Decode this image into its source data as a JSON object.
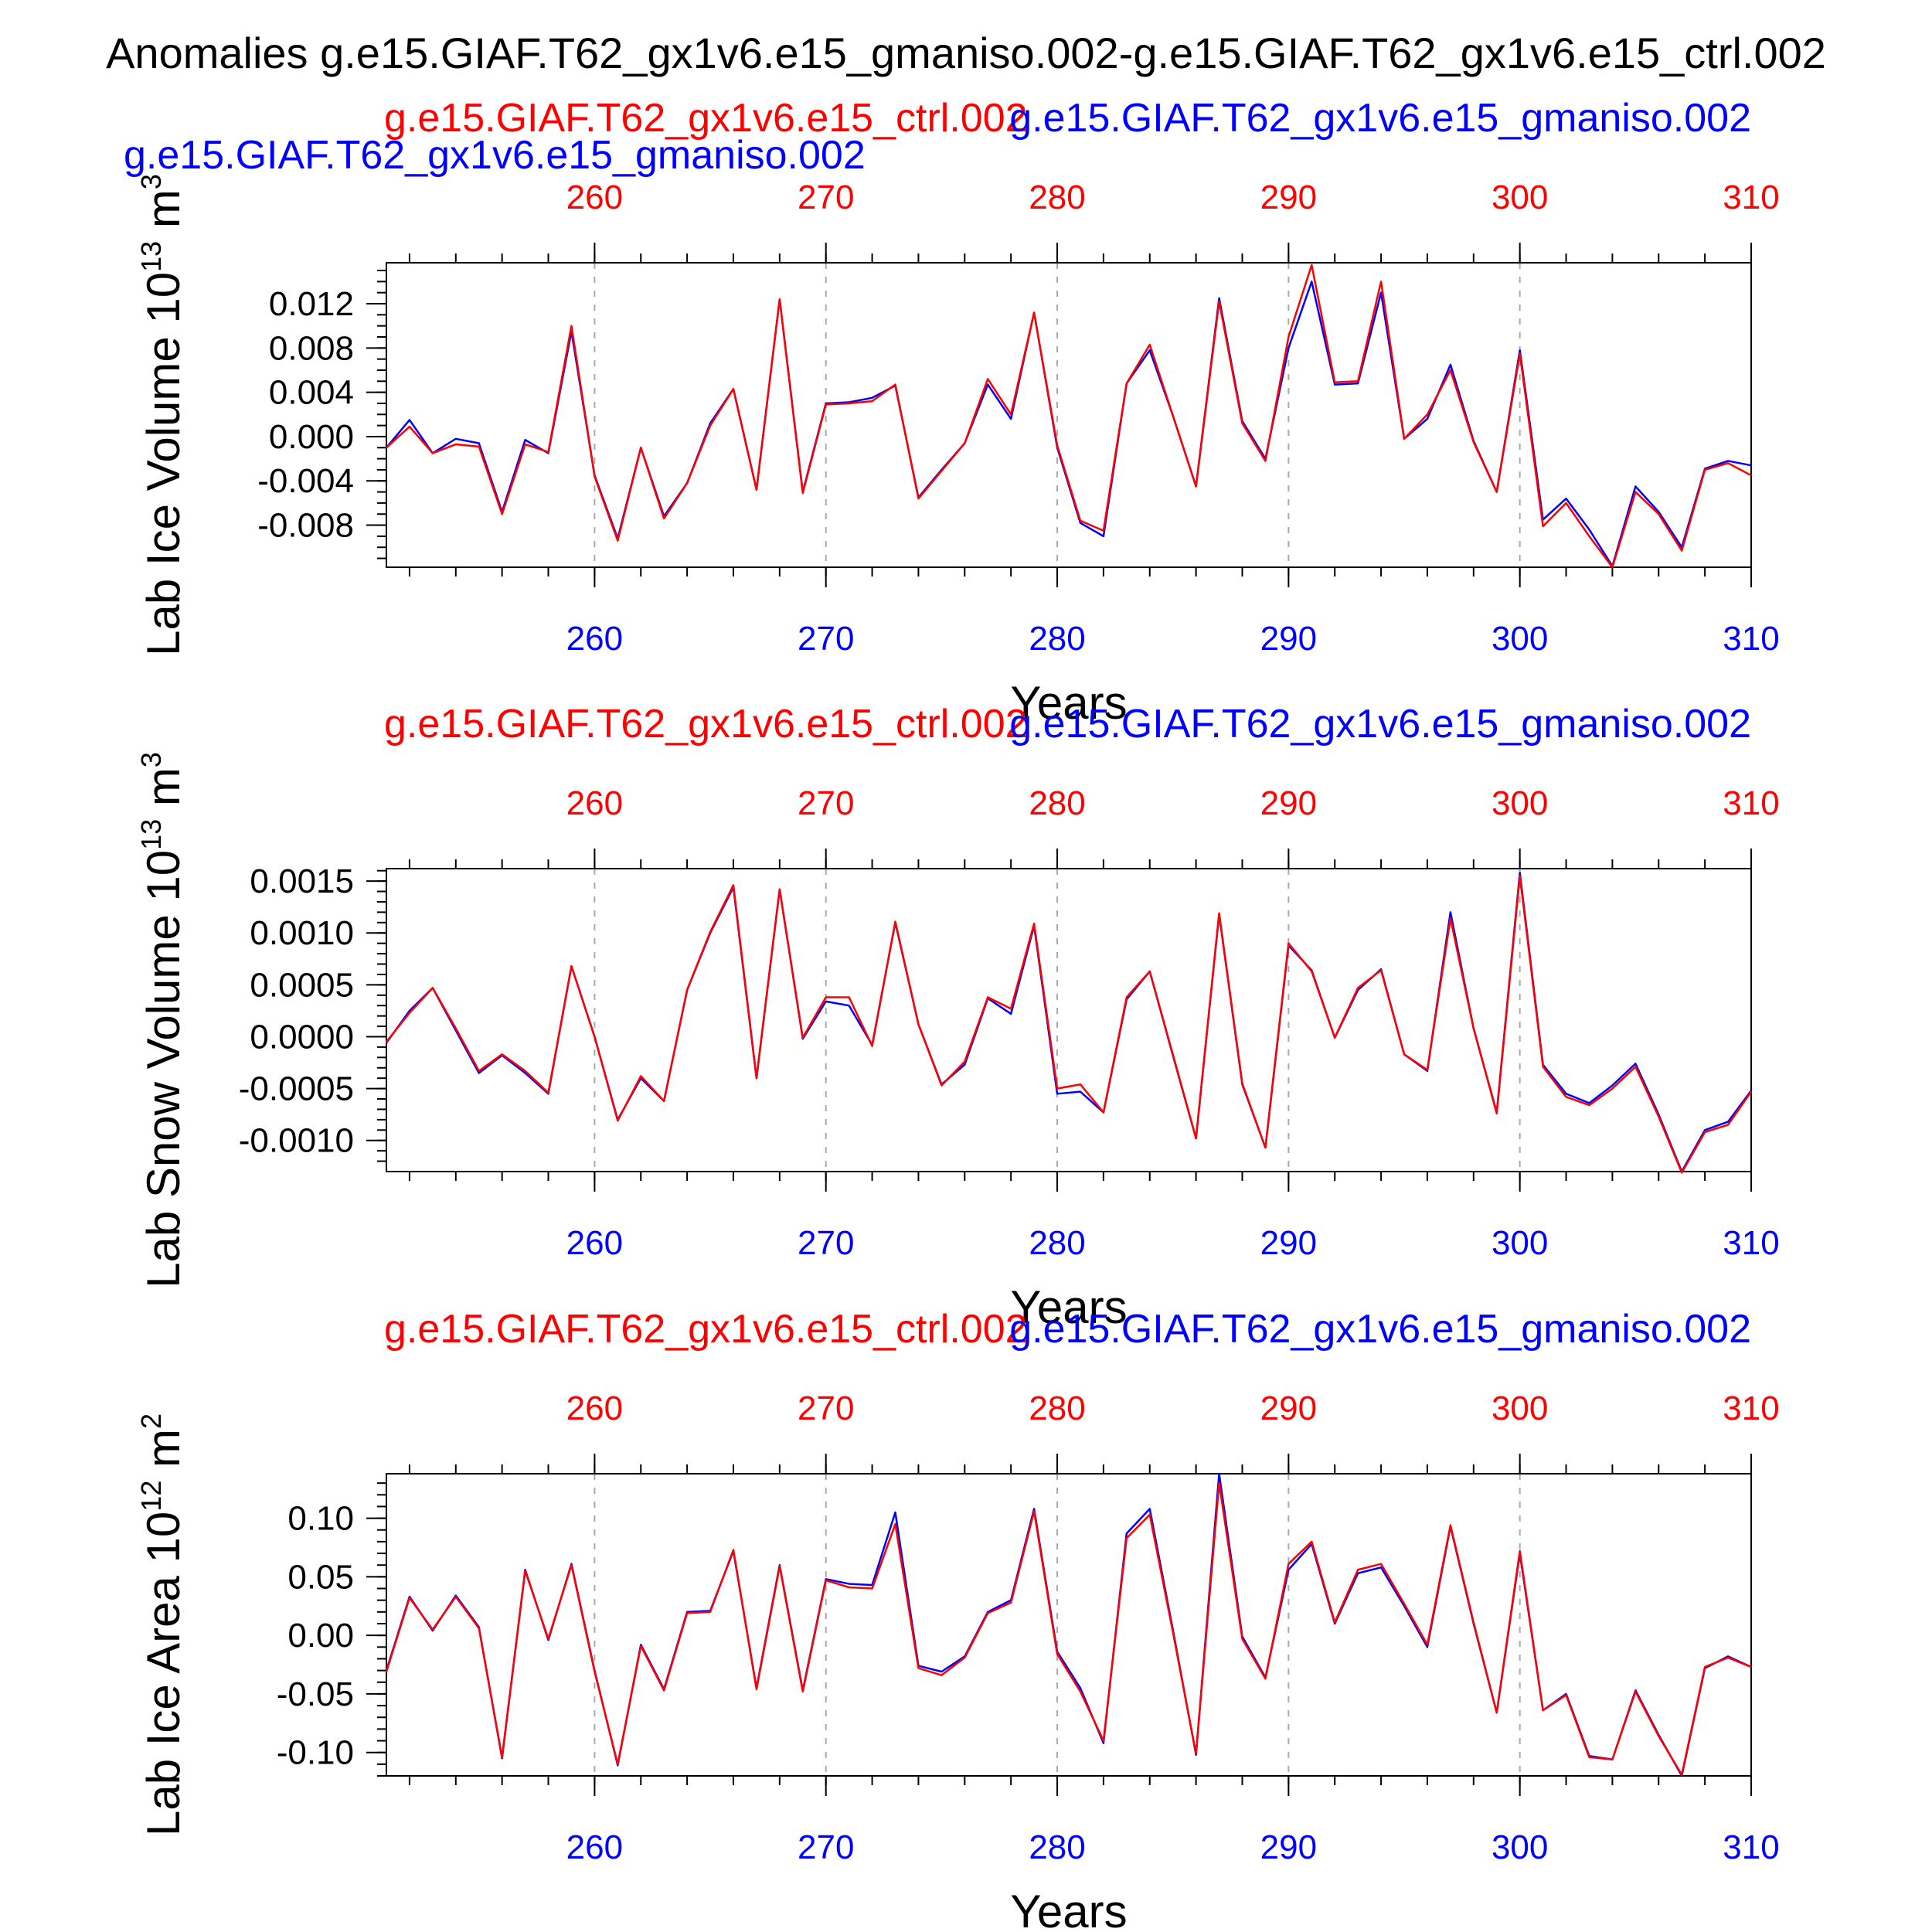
{
  "figure": {
    "title": "Anomalies g.e15.GIAF.T62_gx1v6.e15_gmaniso.002-g.e15.GIAF.T62_gx1v6.e15_ctrl.002",
    "legend_top_left": "g.e15.GIAF.T62_gx1v6.e15_gmaniso.002"
  },
  "colors": {
    "case": "#0000ff",
    "control": "#ff0000",
    "axis": "#000000",
    "grid": "#aaaaaa"
  },
  "chart_data": [
    {
      "type": "line",
      "ylabel": "Lab Ice Volume 10",
      "yunit_exp": "13",
      "yunit_base": "m",
      "yunit_pow": "3",
      "xlabel": "Years",
      "case_label": "g.e15.GIAF.T62_gx1v6.e15_gmaniso.002",
      "control_label": "g.e15.GIAF.T62_gx1v6.e15_ctrl.002",
      "xlim": [
        251,
        310
      ],
      "ylim": [
        -0.0118,
        0.0157
      ],
      "xticks": [
        260,
        270,
        280,
        290,
        300,
        310
      ],
      "yticks": [
        -0.008,
        -0.004,
        0.0,
        0.004,
        0.008,
        0.012
      ],
      "ytick_labels": [
        "-0.008",
        "-0.004",
        "0.000",
        "0.004",
        "0.008",
        "0.012"
      ],
      "yminor_step": 0.001,
      "x": [
        251,
        252,
        253,
        254,
        255,
        256,
        257,
        258,
        259,
        260,
        261,
        262,
        263,
        264,
        265,
        266,
        267,
        268,
        269,
        270,
        271,
        272,
        273,
        274,
        275,
        276,
        277,
        278,
        279,
        280,
        281,
        282,
        283,
        284,
        285,
        286,
        287,
        288,
        289,
        290,
        291,
        292,
        293,
        294,
        295,
        296,
        297,
        298,
        299,
        300,
        301,
        302,
        303,
        304,
        305,
        306,
        307,
        308,
        309,
        310
      ],
      "series": [
        {
          "name": "g.e15.GIAF.T62_gx1v6.e15_gmaniso.002",
          "color": "#0000ff",
          "values": [
            -0.001,
            0.0015,
            -0.0015,
            -0.0002,
            -0.0006,
            -0.0068,
            -0.0003,
            -0.0015,
            0.0095,
            -0.0035,
            -0.0092,
            -0.001,
            -0.0072,
            -0.0042,
            0.0012,
            0.0043,
            -0.0048,
            0.0124,
            -0.005,
            0.003,
            0.0031,
            0.0035,
            0.0046,
            -0.0055,
            -0.003,
            -0.0006,
            0.0047,
            0.0016,
            0.0112,
            -0.001,
            -0.0078,
            -0.009,
            0.0048,
            0.0078,
            0.0019,
            -0.0045,
            0.0125,
            0.0014,
            -0.002,
            0.008,
            0.014,
            0.0047,
            0.0048,
            0.013,
            -0.0002,
            0.0016,
            0.0065,
            -0.0004,
            -0.005,
            0.0078,
            -0.0075,
            -0.0056,
            -0.0084,
            -0.0117,
            -0.0045,
            -0.0068,
            -0.01,
            -0.0029,
            -0.0022,
            -0.0026
          ]
        },
        {
          "name": "g.e15.GIAF.T62_gx1v6.e15_ctrl.002",
          "color": "#ff0000",
          "values": [
            -0.001,
            0.0009,
            -0.0015,
            -0.0007,
            -0.0009,
            -0.007,
            -0.0007,
            -0.0014,
            0.01,
            -0.0036,
            -0.0094,
            -0.001,
            -0.0074,
            -0.0042,
            0.001,
            0.0043,
            -0.0048,
            0.0124,
            -0.0051,
            0.0029,
            0.003,
            0.0032,
            0.0047,
            -0.0056,
            -0.0031,
            -0.0006,
            0.0052,
            0.002,
            0.0112,
            -0.0008,
            -0.0076,
            -0.0085,
            0.0048,
            0.0083,
            0.0019,
            -0.0045,
            0.0122,
            0.0012,
            -0.0022,
            0.009,
            0.0155,
            0.0049,
            0.005,
            0.014,
            -0.0002,
            0.002,
            0.006,
            -0.0005,
            -0.005,
            0.0075,
            -0.0081,
            -0.006,
            -0.009,
            -0.0118,
            -0.005,
            -0.007,
            -0.0103,
            -0.003,
            -0.0024,
            -0.0035
          ]
        }
      ]
    },
    {
      "type": "line",
      "ylabel": "Lab Snow Volume 10",
      "yunit_exp": "13",
      "yunit_base": "m",
      "yunit_pow": "3",
      "xlabel": "Years",
      "case_label": "g.e15.GIAF.T62_gx1v6.e15_gmaniso.002",
      "control_label": "g.e15.GIAF.T62_gx1v6.e15_ctrl.002",
      "xlim": [
        251,
        310
      ],
      "ylim": [
        -0.0013,
        0.00162
      ],
      "xticks": [
        260,
        270,
        280,
        290,
        300,
        310
      ],
      "yticks": [
        -0.001,
        -0.0005,
        0.0,
        0.0005,
        0.001,
        0.0015
      ],
      "ytick_labels": [
        "-0.0010",
        "-0.0005",
        "0.0000",
        "0.0005",
        "0.0010",
        "0.0015"
      ],
      "yminor_step": 0.0001,
      "x": [
        251,
        252,
        253,
        254,
        255,
        256,
        257,
        258,
        259,
        260,
        261,
        262,
        263,
        264,
        265,
        266,
        267,
        268,
        269,
        270,
        271,
        272,
        273,
        274,
        275,
        276,
        277,
        278,
        279,
        280,
        281,
        282,
        283,
        284,
        285,
        286,
        287,
        288,
        289,
        290,
        291,
        292,
        293,
        294,
        295,
        296,
        297,
        298,
        299,
        300,
        301,
        302,
        303,
        304,
        305,
        306,
        307,
        308,
        309,
        310
      ],
      "series": [
        {
          "name": "g.e15.GIAF.T62_gx1v6.e15_gmaniso.002",
          "color": "#0000ff",
          "values": [
            -6e-05,
            0.00025,
            0.00047,
            6e-05,
            -0.00035,
            -0.00018,
            -0.00035,
            -0.00055,
            0.00068,
            0.0,
            -0.0008,
            -0.0004,
            -0.00062,
            0.00045,
            0.001,
            0.00144,
            -0.0004,
            0.00142,
            -2e-05,
            0.00034,
            0.0003,
            -8e-05,
            0.0011,
            0.00012,
            -0.00046,
            -0.00027,
            0.00037,
            0.00022,
            0.00107,
            -0.00055,
            -0.00053,
            -0.00073,
            0.00036,
            0.00063,
            -0.00018,
            -0.00098,
            0.00118,
            -0.00046,
            -0.00107,
            0.00088,
            0.00064,
            -1e-05,
            0.00045,
            0.00065,
            -0.00017,
            -0.00033,
            0.0012,
            8e-05,
            -0.00073,
            0.00158,
            -0.00027,
            -0.00055,
            -0.00064,
            -0.00047,
            -0.00026,
            -0.00075,
            -0.0013,
            -0.0009,
            -0.00082,
            -0.00052
          ]
        },
        {
          "name": "g.e15.GIAF.T62_gx1v6.e15_ctrl.002",
          "color": "#ff0000",
          "values": [
            -5e-05,
            0.00023,
            0.00047,
            8e-05,
            -0.00033,
            -0.00017,
            -0.00033,
            -0.00054,
            0.00068,
            0.0,
            -0.00081,
            -0.00038,
            -0.00062,
            0.00045,
            0.00101,
            0.00146,
            -0.0004,
            0.00142,
            -1e-05,
            0.00038,
            0.00038,
            -9e-05,
            0.00111,
            0.00012,
            -0.00047,
            -0.00024,
            0.00038,
            0.00027,
            0.00109,
            -0.0005,
            -0.00046,
            -0.00073,
            0.00038,
            0.00063,
            -0.00017,
            -0.00098,
            0.00119,
            -0.00045,
            -0.00107,
            0.0009,
            0.00063,
            -1e-05,
            0.00047,
            0.00064,
            -0.00017,
            -0.00032,
            0.00114,
            8e-05,
            -0.00074,
            0.00155,
            -0.00029,
            -0.00058,
            -0.00066,
            -0.0005,
            -0.00029,
            -0.00077,
            -0.00131,
            -0.00092,
            -0.00085,
            -0.00053
          ]
        }
      ]
    },
    {
      "type": "line",
      "ylabel": "Lab Ice Area 10",
      "yunit_exp": "12",
      "yunit_base": "m",
      "yunit_pow": "2",
      "xlabel": "Years",
      "case_label": "g.e15.GIAF.T62_gx1v6.e15_gmaniso.002",
      "control_label": "g.e15.GIAF.T62_gx1v6.e15_ctrl.002",
      "xlim": [
        251,
        310
      ],
      "ylim": [
        -0.12,
        0.138
      ],
      "xticks": [
        260,
        270,
        280,
        290,
        300,
        310
      ],
      "yticks": [
        -0.1,
        -0.05,
        0.0,
        0.05,
        0.1
      ],
      "ytick_labels": [
        "-0.10",
        "-0.05",
        "0.00",
        "0.05",
        "0.10"
      ],
      "yminor_step": 0.01,
      "x": [
        251,
        252,
        253,
        254,
        255,
        256,
        257,
        258,
        259,
        260,
        261,
        262,
        263,
        264,
        265,
        266,
        267,
        268,
        269,
        270,
        271,
        272,
        273,
        274,
        275,
        276,
        277,
        278,
        279,
        280,
        281,
        282,
        283,
        284,
        285,
        286,
        287,
        288,
        289,
        290,
        291,
        292,
        293,
        294,
        295,
        296,
        297,
        298,
        299,
        300,
        301,
        302,
        303,
        304,
        305,
        306,
        307,
        308,
        309,
        310
      ],
      "series": [
        {
          "name": "g.e15.GIAF.T62_gx1v6.e15_gmaniso.002",
          "color": "#0000ff",
          "values": [
            -0.03,
            0.033,
            0.004,
            0.034,
            0.007,
            -0.105,
            0.056,
            -0.004,
            0.061,
            -0.03,
            -0.111,
            -0.008,
            -0.046,
            0.02,
            0.021,
            0.072,
            -0.045,
            0.06,
            -0.047,
            0.048,
            0.044,
            0.043,
            0.105,
            -0.026,
            -0.031,
            -0.018,
            0.02,
            0.03,
            0.108,
            -0.014,
            -0.045,
            -0.092,
            0.087,
            0.108,
            0.005,
            -0.102,
            0.138,
            -0.001,
            -0.036,
            0.056,
            0.078,
            0.01,
            0.053,
            0.058,
            0.025,
            -0.01,
            0.093,
            0.01,
            -0.066,
            0.07,
            -0.064,
            -0.05,
            -0.103,
            -0.106,
            -0.047,
            -0.085,
            -0.12,
            -0.028,
            -0.018,
            -0.027
          ]
        },
        {
          "name": "g.e15.GIAF.T62_gx1v6.e15_ctrl.002",
          "color": "#ff0000",
          "values": [
            -0.031,
            0.032,
            0.005,
            0.033,
            0.006,
            -0.104,
            0.055,
            -0.003,
            0.06,
            -0.031,
            -0.11,
            -0.009,
            -0.047,
            0.019,
            0.02,
            0.073,
            -0.046,
            0.059,
            -0.048,
            0.047,
            0.041,
            0.04,
            0.095,
            -0.028,
            -0.034,
            -0.019,
            0.019,
            0.028,
            0.106,
            -0.016,
            -0.048,
            -0.09,
            0.083,
            0.103,
            0.003,
            -0.101,
            0.13,
            -0.003,
            -0.037,
            0.061,
            0.08,
            0.011,
            0.056,
            0.061,
            0.027,
            -0.008,
            0.094,
            0.011,
            -0.066,
            0.072,
            -0.064,
            -0.051,
            -0.104,
            -0.106,
            -0.048,
            -0.086,
            -0.119,
            -0.027,
            -0.019,
            -0.027
          ]
        }
      ]
    }
  ]
}
